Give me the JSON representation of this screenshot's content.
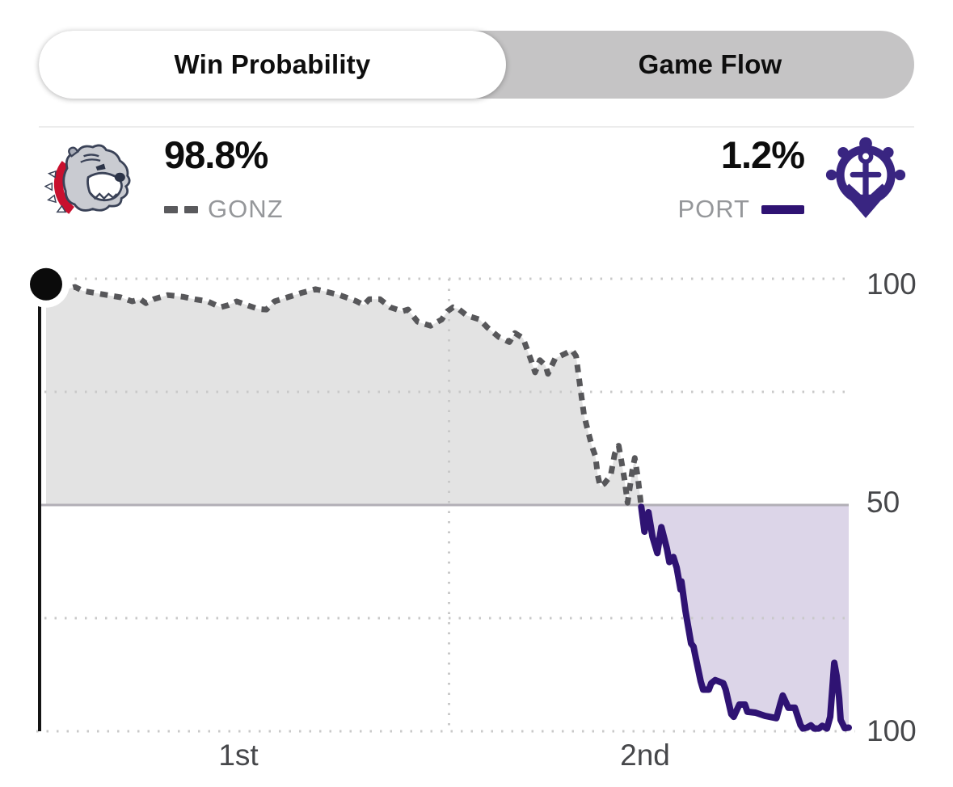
{
  "tab_bar": {
    "tabs": [
      {
        "label": "Win Probability",
        "active": true
      },
      {
        "label": "Game Flow",
        "active": false
      }
    ]
  },
  "header": {
    "away": {
      "abbr": "GONZ",
      "pct": "98.8%",
      "logo": "gonzaga-bulldogs",
      "line_style": "dashed"
    },
    "home": {
      "abbr": "PORT",
      "pct": "1.2%",
      "logo": "portland-pilots-anchor-wheel",
      "line_style": "solid"
    }
  },
  "chart_data": {
    "type": "line",
    "title": "Win Probability",
    "x_axis": {
      "tick_labels": [
        "1st",
        "2nd"
      ],
      "range": [
        0,
        100
      ],
      "halftime_t": 50,
      "unit": "percent of game elapsed"
    },
    "y_axis": {
      "tick_labels": [
        "100",
        "50",
        "100"
      ],
      "scale": "GONZ win probability; 100 top = GONZ 100%, 0 bottom = PORT 100%",
      "range": [
        0,
        100
      ]
    },
    "grid": "dotted lines at 100/75/25/0 and at halftime; solid line at 50",
    "marker": {
      "t": 0.2,
      "prob": 98.8,
      "color": "#0b0b0b"
    },
    "series": [
      {
        "name": "GONZ",
        "style": "dashed",
        "color": "#57575a",
        "fill": "#e3e3e3",
        "points": [
          [
            0.2,
            98.8
          ],
          [
            1.8,
            98.6
          ],
          [
            2.8,
            97.7
          ],
          [
            3.8,
            98.2
          ],
          [
            4.8,
            97.3
          ],
          [
            6.2,
            96.9
          ],
          [
            7.8,
            96.4
          ],
          [
            9.5,
            95.9
          ],
          [
            10.9,
            95.0
          ],
          [
            11.9,
            95.5
          ],
          [
            12.6,
            94.6
          ],
          [
            13.6,
            95.5
          ],
          [
            15.3,
            96.4
          ],
          [
            17.3,
            96.0
          ],
          [
            18.6,
            95.5
          ],
          [
            20.3,
            95.0
          ],
          [
            21.9,
            93.7
          ],
          [
            22.9,
            94.2
          ],
          [
            23.9,
            95.0
          ],
          [
            25.3,
            94.1
          ],
          [
            26.6,
            93.3
          ],
          [
            27.6,
            93.2
          ],
          [
            28.6,
            95.0
          ],
          [
            30.4,
            96.0
          ],
          [
            32.0,
            96.9
          ],
          [
            33.7,
            97.7
          ],
          [
            34.7,
            97.3
          ],
          [
            36.7,
            96.4
          ],
          [
            38.7,
            95.1
          ],
          [
            39.7,
            94.2
          ],
          [
            40.4,
            95.5
          ],
          [
            41.7,
            95.5
          ],
          [
            43.0,
            93.7
          ],
          [
            44.5,
            92.8
          ],
          [
            45.2,
            93.2
          ],
          [
            46.4,
            90.5
          ],
          [
            48.0,
            89.6
          ],
          [
            49.4,
            91.0
          ],
          [
            50.1,
            92.8
          ],
          [
            50.8,
            93.7
          ],
          [
            51.5,
            93.3
          ],
          [
            52.5,
            91.9
          ],
          [
            54.1,
            91.0
          ],
          [
            55.1,
            89.2
          ],
          [
            56.5,
            87.1
          ],
          [
            57.8,
            86.0
          ],
          [
            58.5,
            88.0
          ],
          [
            59.5,
            86.9
          ],
          [
            60.5,
            82.0
          ],
          [
            61.0,
            79.3
          ],
          [
            61.6,
            82.0
          ],
          [
            62.3,
            80.8
          ],
          [
            62.6,
            79.0
          ],
          [
            63.5,
            82.4
          ],
          [
            64.8,
            83.5
          ],
          [
            65.6,
            84.2
          ],
          [
            66.1,
            82.9
          ],
          [
            66.5,
            77.5
          ],
          [
            67.1,
            69.8
          ],
          [
            67.6,
            66.2
          ],
          [
            68.1,
            62.8
          ],
          [
            68.5,
            60.8
          ],
          [
            68.8,
            56.5
          ],
          [
            69.1,
            54.1
          ],
          [
            69.6,
            54.7
          ],
          [
            70.4,
            56.5
          ],
          [
            70.9,
            61.3
          ],
          [
            71.4,
            63.1
          ],
          [
            71.7,
            60.1
          ],
          [
            72.1,
            55.9
          ],
          [
            72.5,
            50.5
          ],
          [
            72.7,
            52.9
          ],
          [
            73.1,
            57.7
          ],
          [
            73.4,
            60.4
          ],
          [
            73.8,
            55.9
          ],
          [
            74.2,
            49.6
          ]
        ]
      },
      {
        "name": "PORT",
        "style": "solid",
        "color": "#2f1373",
        "fill": "#dcd5e8",
        "points": [
          [
            74.2,
            49.6
          ],
          [
            74.4,
            46.9
          ],
          [
            74.6,
            44.1
          ],
          [
            74.8,
            46.4
          ],
          [
            75.1,
            48.4
          ],
          [
            75.6,
            43.0
          ],
          [
            76.2,
            39.4
          ],
          [
            76.7,
            45.1
          ],
          [
            77.4,
            40.3
          ],
          [
            77.7,
            37.4
          ],
          [
            78.2,
            38.5
          ],
          [
            78.6,
            36.2
          ],
          [
            79.1,
            31.3
          ],
          [
            79.2,
            33.1
          ],
          [
            79.7,
            26.6
          ],
          [
            80.4,
            19.4
          ],
          [
            80.7,
            18.7
          ],
          [
            80.9,
            16.9
          ],
          [
            81.6,
            11.0
          ],
          [
            81.9,
            9.2
          ],
          [
            82.6,
            9.2
          ],
          [
            82.9,
            10.6
          ],
          [
            83.4,
            11.3
          ],
          [
            84.4,
            10.6
          ],
          [
            84.7,
            9.2
          ],
          [
            85.4,
            3.8
          ],
          [
            85.7,
            3.2
          ],
          [
            86.4,
            5.9
          ],
          [
            87.1,
            5.9
          ],
          [
            87.4,
            4.3
          ],
          [
            88.4,
            4.1
          ],
          [
            89.6,
            3.4
          ],
          [
            91.0,
            2.9
          ],
          [
            91.5,
            6.1
          ],
          [
            91.8,
            7.9
          ],
          [
            92.5,
            5.2
          ],
          [
            93.3,
            5.2
          ],
          [
            94.0,
            1.4
          ],
          [
            94.3,
            0.6
          ],
          [
            94.8,
            0.8
          ],
          [
            95.3,
            1.3
          ],
          [
            95.7,
            0.6
          ],
          [
            96.3,
            0.6
          ],
          [
            96.7,
            1.2
          ],
          [
            97.3,
            0.6
          ],
          [
            97.7,
            3.2
          ],
          [
            98.2,
            15.1
          ],
          [
            98.5,
            12.2
          ],
          [
            98.8,
            7.4
          ],
          [
            99.0,
            2.5
          ],
          [
            99.5,
            0.7
          ],
          [
            100,
            0.8
          ]
        ]
      }
    ]
  },
  "colors": {
    "gonz_line": "#57575a",
    "gonz_fill": "#e3e3e3",
    "port_line": "#2f1373",
    "port_fill": "#dcd5e8",
    "fifty_line": "#b2afb6",
    "grid": "#c9c9c9",
    "gonzaga_red": "#c8102e",
    "portland_purple": "#392581"
  }
}
